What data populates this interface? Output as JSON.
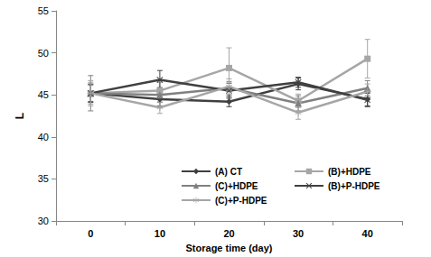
{
  "chart_data": {
    "type": "line",
    "x_label": "Storage time (day)",
    "y_label": "L",
    "categories": [
      "0",
      "10",
      "20",
      "30",
      "40"
    ],
    "ylim": [
      30,
      55
    ],
    "yticks": [
      30,
      35,
      40,
      45,
      50,
      55
    ],
    "grid": false,
    "legend": "bottom",
    "series": [
      {
        "name": "(A) CT",
        "color": "#404040",
        "marker": "diamond",
        "values": [
          45.2,
          44.5,
          44.2,
          46.3,
          44.5
        ],
        "errors": [
          1.1,
          0.8,
          0.6,
          0.7,
          0.8
        ]
      },
      {
        "name": "(B)+HDPE",
        "color": "#a6a6a6",
        "marker": "square",
        "values": [
          45.2,
          45.5,
          48.2,
          44.3,
          49.3
        ],
        "errors": [
          1.3,
          1.0,
          2.4,
          0.8,
          2.3
        ]
      },
      {
        "name": "(C)+HDPE",
        "color": "#808080",
        "marker": "triangle",
        "values": [
          45.2,
          45.0,
          45.8,
          44.0,
          45.8
        ],
        "errors": [
          2.1,
          0.9,
          0.8,
          0.9,
          0.9
        ]
      },
      {
        "name": "(B)+P-HDPE",
        "color": "#404040",
        "marker": "x",
        "values": [
          45.2,
          46.8,
          45.5,
          46.5,
          44.4
        ],
        "errors": [
          1.0,
          1.1,
          0.9,
          0.6,
          0.8
        ]
      },
      {
        "name": "(C)+P-HDPE",
        "color": "#a6a6a6",
        "marker": "star",
        "values": [
          45.2,
          43.5,
          46.0,
          42.9,
          45.4
        ],
        "errors": [
          1.5,
          0.7,
          0.9,
          0.8,
          0.9
        ]
      }
    ]
  }
}
